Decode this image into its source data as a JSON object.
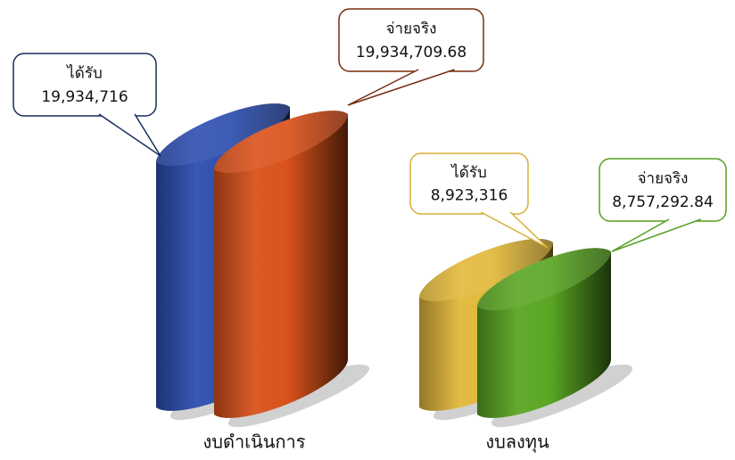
{
  "chart_data": {
    "type": "bar3d",
    "categories": [
      "งบดำเนินการ",
      "งบลงทุน"
    ],
    "series": [
      {
        "name": "ได้รับ",
        "colors": [
          "#2d4fb0",
          "#e2b83a"
        ],
        "values": [
          19934716,
          8923316
        ],
        "value_labels": [
          "19,934,716",
          "8,923,316"
        ]
      },
      {
        "name": "จ่ายจริง",
        "colors": [
          "#d9521c",
          "#5aa624"
        ],
        "values": [
          19934709.68,
          8757292.84
        ],
        "value_labels": [
          "19,934,709.68",
          "8,757,292.84"
        ]
      }
    ]
  }
}
